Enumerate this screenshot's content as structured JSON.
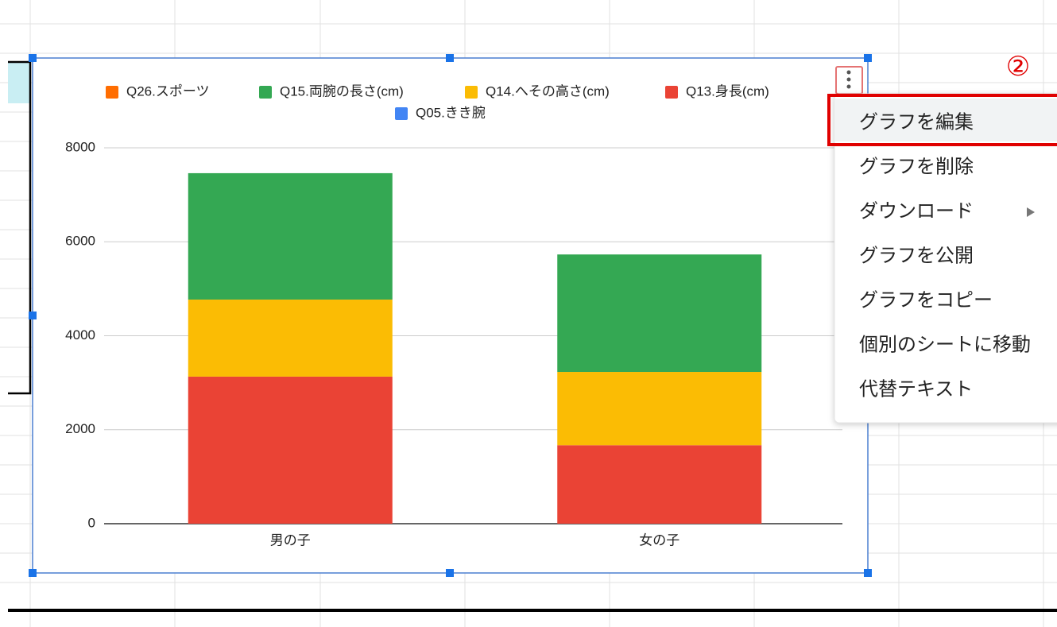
{
  "chart_data": {
    "type": "stacked_bar",
    "categories": [
      "男の子",
      "女の子"
    ],
    "series": [
      {
        "name": "Q26.スポーツ",
        "color": "#ff6d01",
        "values": [
          0,
          0
        ]
      },
      {
        "name": "Q15.両腕の長さ(cm)",
        "color": "#34a853",
        "values": [
          2690,
          2500
        ]
      },
      {
        "name": "Q14.へその高さ(cm)",
        "color": "#fbbc04",
        "values": [
          1640,
          1560
        ]
      },
      {
        "name": "Q13.身長(cm)",
        "color": "#ea4335",
        "values": [
          3130,
          1670
        ]
      },
      {
        "name": "Q05.きき腕",
        "color": "#4285f4",
        "values": [
          0,
          0
        ]
      }
    ],
    "ylim": [
      0,
      8000
    ],
    "yticks": [
      0,
      2000,
      4000,
      6000,
      8000
    ],
    "grid": true
  },
  "menu": {
    "items": [
      "グラフを編集",
      "グラフを削除",
      "ダウンロード",
      "グラフを公開",
      "グラフをコピー",
      "個別のシートに移動",
      "代替テキスト"
    ]
  },
  "annotation": "②"
}
